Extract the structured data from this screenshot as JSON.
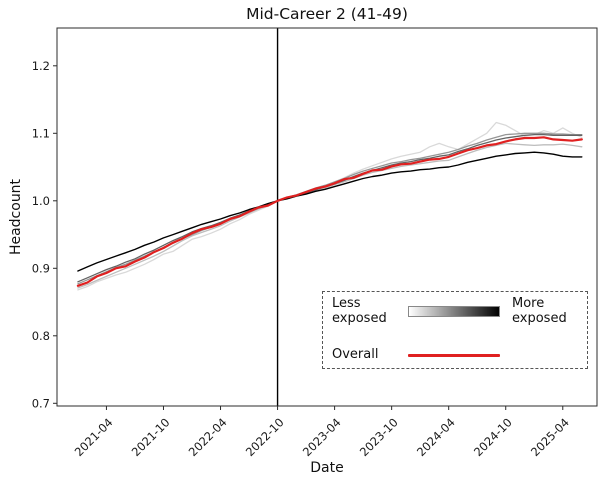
{
  "figure": {
    "title": "Mid-Career 2 (41-49)",
    "xlabel": "Date",
    "ylabel": "Headcount"
  },
  "legend": {
    "less_label": "Less exposed",
    "more_label": "More exposed",
    "overall_label": "Overall",
    "overall_color": "#e02020",
    "gradient_from": "#ffffff",
    "gradient_to": "#000000",
    "border_style": "dashed"
  },
  "chart_data": {
    "type": "line",
    "title": "Mid-Career 2 (41-49)",
    "xlabel": "Date",
    "ylabel": "Headcount",
    "ylim": [
      0.7,
      1.256
    ],
    "yticks": [
      0.7,
      0.8,
      0.9,
      1.0,
      1.1,
      1.2
    ],
    "x_monthly_start": "2021-01",
    "x_monthly_end": "2025-06",
    "xticks": [
      {
        "month_index": 3,
        "label": "2021-04"
      },
      {
        "month_index": 9,
        "label": "2021-10"
      },
      {
        "month_index": 15,
        "label": "2022-04"
      },
      {
        "month_index": 21,
        "label": "2022-10"
      },
      {
        "month_index": 27,
        "label": "2023-04"
      },
      {
        "month_index": 33,
        "label": "2023-10"
      },
      {
        "month_index": 39,
        "label": "2024-04"
      },
      {
        "month_index": 45,
        "label": "2024-10"
      },
      {
        "month_index": 51,
        "label": "2025-04"
      }
    ],
    "event_vline": {
      "month_index": 21,
      "color": "#000000"
    },
    "normalization": "all series = 1.0 at vertical line (2022-10)",
    "grid": false,
    "legend_position": "lower right",
    "series": [
      {
        "name": "exposure-q1-least-exposed",
        "color": "#d9d9d9",
        "width": 1.3,
        "values": [
          0.868,
          0.873,
          0.88,
          0.885,
          0.89,
          0.894,
          0.9,
          0.906,
          0.913,
          0.921,
          0.925,
          0.934,
          0.943,
          0.947,
          0.952,
          0.958,
          0.966,
          0.972,
          0.98,
          0.986,
          0.992,
          1.0,
          1.004,
          1.008,
          1.012,
          1.017,
          1.022,
          1.028,
          1.034,
          1.041,
          1.047,
          1.052,
          1.057,
          1.062,
          1.066,
          1.069,
          1.072,
          1.08,
          1.085,
          1.08,
          1.076,
          1.084,
          1.092,
          1.1,
          1.116,
          1.112,
          1.104,
          1.096,
          1.098,
          1.104,
          1.1,
          1.108,
          1.1,
          1.094
        ]
      },
      {
        "name": "exposure-q2",
        "color": "#bdbdbd",
        "width": 1.3,
        "values": [
          0.871,
          0.876,
          0.882,
          0.888,
          0.894,
          0.9,
          0.906,
          0.912,
          0.918,
          0.925,
          0.933,
          0.941,
          0.948,
          0.953,
          0.958,
          0.963,
          0.97,
          0.976,
          0.982,
          0.988,
          0.993,
          1.0,
          1.004,
          1.007,
          1.011,
          1.015,
          1.019,
          1.024,
          1.028,
          1.033,
          1.038,
          1.042,
          1.045,
          1.048,
          1.051,
          1.053,
          1.055,
          1.057,
          1.059,
          1.06,
          1.065,
          1.07,
          1.075,
          1.079,
          1.082,
          1.085,
          1.084,
          1.083,
          1.082,
          1.083,
          1.083,
          1.084,
          1.082,
          1.08
        ]
      },
      {
        "name": "exposure-q3",
        "color": "#969696",
        "width": 1.3,
        "values": [
          0.877,
          0.883,
          0.889,
          0.895,
          0.901,
          0.906,
          0.912,
          0.918,
          0.924,
          0.931,
          0.937,
          0.944,
          0.95,
          0.956,
          0.961,
          0.967,
          0.972,
          0.978,
          0.983,
          0.989,
          0.994,
          1.0,
          1.005,
          1.009,
          1.014,
          1.019,
          1.023,
          1.028,
          1.033,
          1.039,
          1.044,
          1.048,
          1.052,
          1.056,
          1.058,
          1.061,
          1.063,
          1.066,
          1.069,
          1.072,
          1.076,
          1.081,
          1.085,
          1.09,
          1.094,
          1.098,
          1.099,
          1.1,
          1.1,
          1.1,
          1.099,
          1.099,
          1.098,
          1.098
        ]
      },
      {
        "name": "exposure-q4",
        "color": "#636363",
        "width": 1.3,
        "values": [
          0.88,
          0.886,
          0.892,
          0.898,
          0.903,
          0.909,
          0.914,
          0.921,
          0.927,
          0.934,
          0.941,
          0.947,
          0.954,
          0.959,
          0.963,
          0.968,
          0.974,
          0.979,
          0.985,
          0.99,
          0.995,
          1.0,
          1.004,
          1.008,
          1.012,
          1.016,
          1.021,
          1.025,
          1.03,
          1.036,
          1.041,
          1.045,
          1.049,
          1.053,
          1.056,
          1.058,
          1.061,
          1.063,
          1.066,
          1.068,
          1.073,
          1.077,
          1.082,
          1.086,
          1.09,
          1.093,
          1.095,
          1.097,
          1.098,
          1.098,
          1.097,
          1.097,
          1.097,
          1.097
        ]
      },
      {
        "name": "exposure-q5-most-exposed",
        "color": "#000000",
        "width": 1.4,
        "values": [
          0.896,
          0.902,
          0.908,
          0.913,
          0.918,
          0.923,
          0.928,
          0.934,
          0.939,
          0.945,
          0.95,
          0.955,
          0.96,
          0.965,
          0.969,
          0.973,
          0.978,
          0.982,
          0.987,
          0.991,
          0.996,
          1.0,
          1.003,
          1.007,
          1.01,
          1.014,
          1.017,
          1.021,
          1.025,
          1.029,
          1.033,
          1.036,
          1.038,
          1.041,
          1.043,
          1.044,
          1.046,
          1.047,
          1.049,
          1.05,
          1.053,
          1.057,
          1.06,
          1.063,
          1.066,
          1.068,
          1.07,
          1.071,
          1.072,
          1.071,
          1.069,
          1.066,
          1.065,
          1.065
        ]
      },
      {
        "name": "overall",
        "color": "#e02020",
        "width": 2.2,
        "values": [
          0.874,
          0.879,
          0.888,
          0.893,
          0.9,
          0.903,
          0.91,
          0.916,
          0.924,
          0.93,
          0.938,
          0.944,
          0.952,
          0.958,
          0.961,
          0.966,
          0.973,
          0.977,
          0.984,
          0.99,
          0.993,
          1.0,
          1.005,
          1.008,
          1.013,
          1.018,
          1.021,
          1.026,
          1.032,
          1.034,
          1.04,
          1.045,
          1.046,
          1.051,
          1.054,
          1.055,
          1.058,
          1.061,
          1.062,
          1.065,
          1.07,
          1.075,
          1.078,
          1.082,
          1.084,
          1.088,
          1.091,
          1.093,
          1.093,
          1.094,
          1.091,
          1.09,
          1.089,
          1.091
        ]
      }
    ]
  }
}
